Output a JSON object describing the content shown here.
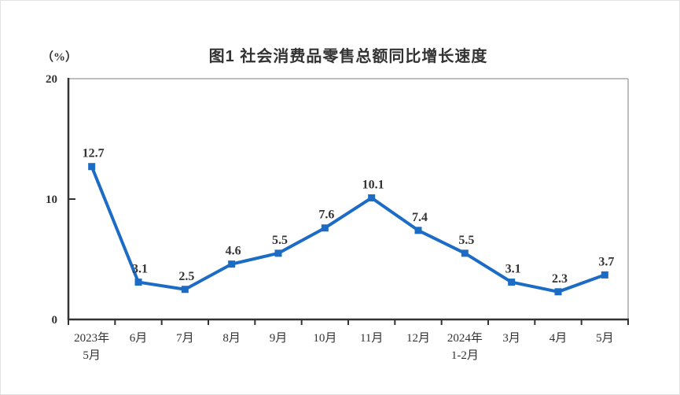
{
  "page": {
    "background": "#ffffff",
    "border_color": "#e3e3e3"
  },
  "chart_data": {
    "type": "line",
    "title": "图1  社会消费品零售总额同比增长速度",
    "ylabel": "（%）",
    "xlabel": "",
    "categories": [
      "2023年5月",
      "6月",
      "7月",
      "8月",
      "9月",
      "10月",
      "11月",
      "12月",
      "2024年1-2月",
      "3月",
      "4月",
      "5月"
    ],
    "categories_lines": [
      [
        "2023年",
        "5月"
      ],
      [
        "6月"
      ],
      [
        "7月"
      ],
      [
        "8月"
      ],
      [
        "9月"
      ],
      [
        "10月"
      ],
      [
        "11月"
      ],
      [
        "12月"
      ],
      [
        "2024年",
        "1-2月"
      ],
      [
        "3月"
      ],
      [
        "4月"
      ],
      [
        "5月"
      ]
    ],
    "values": [
      12.7,
      3.1,
      2.5,
      4.6,
      5.5,
      7.6,
      10.1,
      7.4,
      5.5,
      3.1,
      2.3,
      3.7
    ],
    "data_labels": [
      "12.7",
      "3.1",
      "2.5",
      "4.6",
      "5.5",
      "7.6",
      "10.1",
      "7.4",
      "5.5",
      "3.1",
      "2.3",
      "3.7"
    ],
    "yticks": [
      0,
      10,
      20
    ],
    "ytick_labels": [
      "0",
      "10",
      "20"
    ],
    "ylim": [
      0,
      20
    ],
    "grid": false,
    "legend": "none",
    "marker": "square",
    "line_color": "#1c6cc6",
    "label_color": "#333333",
    "axis_color": "#333333",
    "frame_color": "#a8a8a8"
  }
}
